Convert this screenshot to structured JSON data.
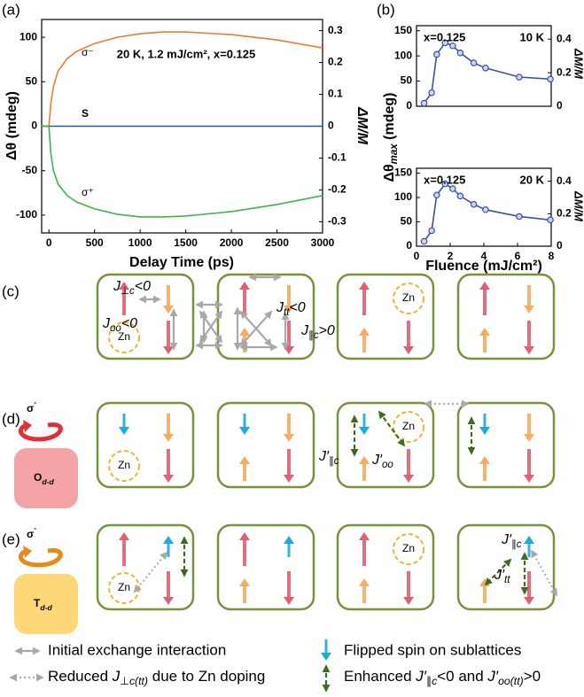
{
  "panel_labels": [
    "(a)",
    "(b)",
    "(c)",
    "(d)",
    "(e)"
  ],
  "chart_data": [
    {
      "type": "line",
      "xlabel": "Delay Time (ps)",
      "ylabel": "Δθ (mdeg)",
      "y2label": "ΔM/M",
      "annotation": "20 K, 1.2 mJ/cm², x=0.125",
      "x": [
        -80,
        0,
        20,
        50,
        100,
        200,
        300,
        500,
        750,
        1000,
        1250,
        1500,
        2000,
        2500,
        3000
      ],
      "series": [
        {
          "name": "σ⁻",
          "color": "#f07a30",
          "values": [
            0,
            0,
            25,
            45,
            62,
            76,
            84,
            93,
            100,
            104,
            106,
            106,
            103,
            97,
            88
          ]
        },
        {
          "name": "S",
          "color": "#3050a0",
          "values": [
            0,
            0,
            0,
            0,
            0,
            0,
            0,
            0,
            0,
            0,
            0,
            0,
            0,
            0,
            0
          ]
        },
        {
          "name": "σ⁺",
          "color": "#3cb54a",
          "values": [
            0,
            0,
            -30,
            -50,
            -65,
            -78,
            -85,
            -93,
            -99,
            -102,
            -102,
            -101,
            -96,
            -88,
            -78
          ]
        }
      ],
      "xlim": [
        -80,
        3000
      ],
      "xticks": [
        0,
        500,
        1000,
        1500,
        2000,
        2500,
        3000
      ],
      "ylim": [
        -120,
        120
      ],
      "yticks": [
        -100,
        -50,
        0,
        50,
        100
      ],
      "y2lim": [
        -0.335,
        0.335
      ],
      "y2ticks": [
        -0.3,
        -0.2,
        -0.1,
        0,
        0.1,
        0.2,
        0.3
      ]
    },
    {
      "type": "line",
      "annotations": [
        "x=0.125",
        "10 K"
      ],
      "y2label": "ΔM/M",
      "marker": "circle",
      "color": "#3a52a0",
      "x": [
        0.45,
        0.9,
        1.2,
        1.7,
        2.15,
        2.6,
        3.4,
        4.1,
        6.1,
        7.95
      ],
      "values": [
        6,
        27,
        103,
        126,
        120,
        106,
        86,
        76,
        58,
        54
      ],
      "xlim": [
        0,
        8
      ],
      "ylim": [
        0,
        160
      ],
      "yticks": [
        0,
        50,
        100,
        150
      ],
      "y2lim": [
        0,
        0.48
      ],
      "y2ticks": [
        0,
        0.2,
        0.4
      ]
    },
    {
      "type": "line",
      "annotations": [
        "x=0.125",
        "20 K"
      ],
      "y2label": "ΔM/M",
      "marker": "circle",
      "color": "#3a52a0",
      "xlabel": "Fluence (mJ/cm²)",
      "x": [
        0.45,
        0.9,
        1.2,
        1.7,
        2.15,
        2.6,
        3.4,
        4.1,
        6.1,
        7.95
      ],
      "values": [
        10,
        32,
        105,
        128,
        118,
        103,
        86,
        75,
        61,
        54
      ],
      "xlim": [
        0,
        8
      ],
      "xticks": [
        0,
        2,
        4,
        6,
        8
      ],
      "ylim": [
        0,
        160
      ],
      "yticks": [
        0,
        50,
        100,
        150
      ],
      "y2lim": [
        0,
        0.48
      ],
      "y2ticks": [
        0,
        0.2,
        0.4
      ]
    }
  ],
  "shared_ylabel": [
    "Δθ",
    "max",
    " (mdeg)"
  ],
  "diagram": {
    "c": {
      "zn": [
        "Zn",
        "Zn"
      ],
      "labels": [
        [
          "J",
          "⊥c",
          "<0"
        ],
        [
          "J",
          "oo",
          "<0"
        ],
        [
          "J",
          "tt",
          "<0"
        ],
        [
          "J",
          "∥c",
          ">0"
        ]
      ]
    },
    "d": {
      "pump": [
        "σ",
        "-"
      ],
      "state": [
        "O",
        "d-d"
      ],
      "zn": [
        "Zn",
        "Zn"
      ],
      "labels": [
        [
          "J′",
          "∥c"
        ],
        [
          "J′",
          "oo"
        ]
      ]
    },
    "e": {
      "pump": [
        "σ",
        "-"
      ],
      "state": [
        "T",
        "d-d"
      ],
      "zn": [
        "Zn",
        "Zn"
      ],
      "labels": [
        [
          "J′",
          "∥c"
        ],
        [
          "J′",
          "tt"
        ]
      ]
    }
  },
  "legend": {
    "initial": "Initial exchange interaction",
    "flipped": "Flipped spin on sublattices",
    "reduced": [
      "Reduced ",
      "J",
      "⊥c(tt)",
      " due to Zn doping"
    ],
    "enhanced": [
      "Enhanced ",
      "J′",
      "∥c",
      "<0 and ",
      "J′",
      "oo(tt)",
      ">0"
    ]
  }
}
